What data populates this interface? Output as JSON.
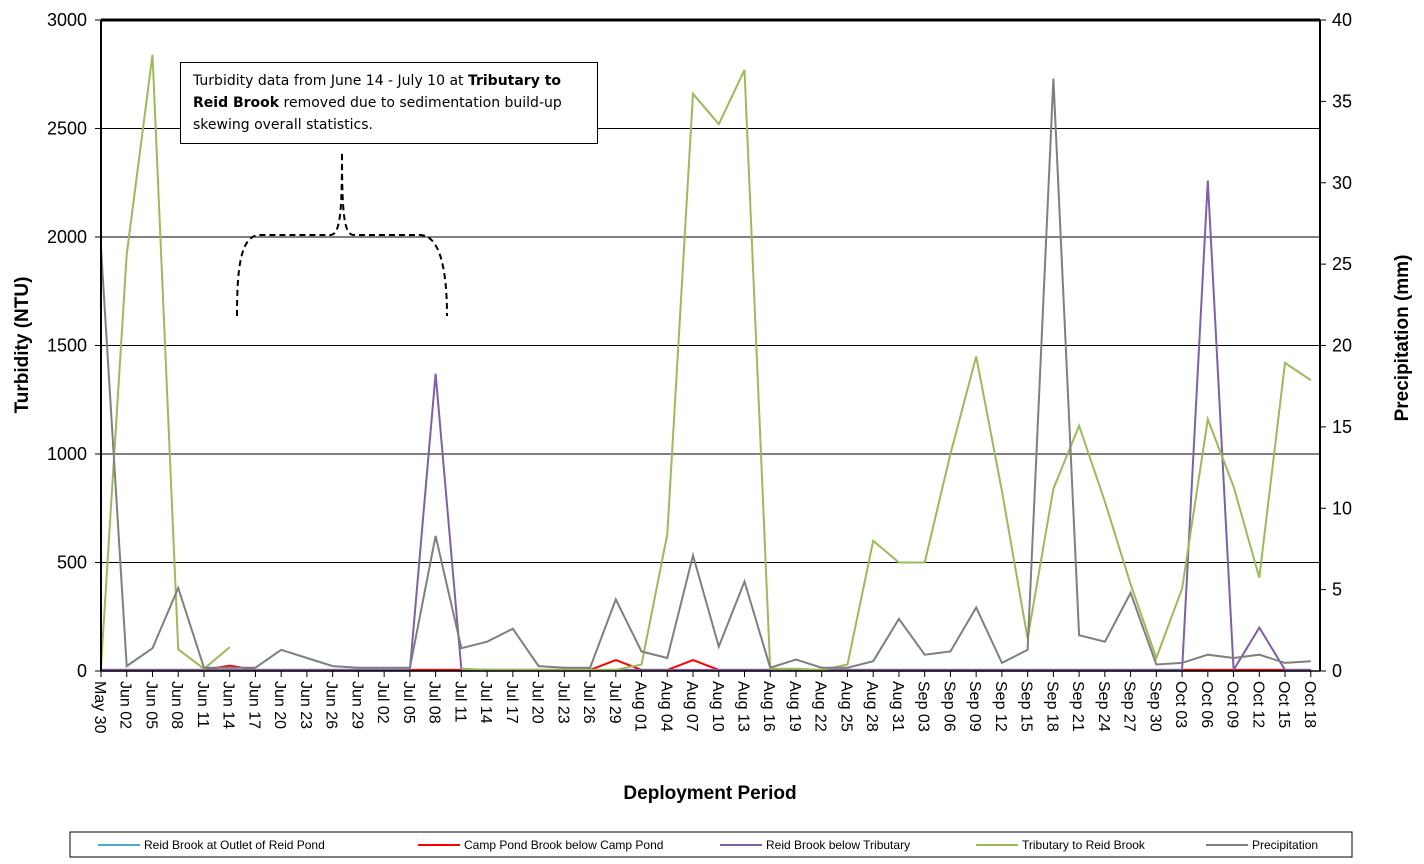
{
  "chart_data": {
    "type": "line",
    "x_label": "Deployment Period",
    "y_label": "Turbidity (NTU)",
    "y2_label": "Precipitation (mm)",
    "annotation": [
      "Turbidity data from June 14 - July 10 at ",
      "Tributary to Reid Brook",
      " removed due to sedimentation build-up skewing overall statistics."
    ],
    "categories": [
      "May 30",
      "Jun 02",
      "Jun 05",
      "Jun 08",
      "Jun 11",
      "Jun 14",
      "Jun 17",
      "Jun 20",
      "Jun 23",
      "Jun 26",
      "Jun 29",
      "Jul 02",
      "Jul 05",
      "Jul 08",
      "Jul 11",
      "Jul 14",
      "Jul 17",
      "Jul 20",
      "Jul 23",
      "Jul 26",
      "Jul 29",
      "Aug 01",
      "Aug 04",
      "Aug 07",
      "Aug 10",
      "Aug 13",
      "Aug 16",
      "Aug 19",
      "Aug 22",
      "Aug 25",
      "Aug 28",
      "Aug 31",
      "Sep 03",
      "Sep 06",
      "Sep 09",
      "Sep 12",
      "Sep 15",
      "Sep 18",
      "Sep 21",
      "Sep 24",
      "Sep 27",
      "Sep 30",
      "Oct 03",
      "Oct 06",
      "Oct 09",
      "Oct 12",
      "Oct 15",
      "Oct 18"
    ],
    "ylim": [
      0,
      3000
    ],
    "yticks": [
      0,
      500,
      1000,
      1500,
      2000,
      2500,
      3000
    ],
    "y2lim": [
      0,
      40
    ],
    "y2ticks": [
      0,
      5,
      10,
      15,
      20,
      25,
      30,
      35,
      40
    ],
    "grid": true,
    "legend": "bottom",
    "series": [
      {
        "name": "Reid Brook at Outlet of Reid Pond",
        "color": "#4bacc6",
        "values": [
          2,
          2,
          2,
          2,
          2,
          2,
          2,
          2,
          2,
          2,
          2,
          2,
          2,
          2,
          2,
          2,
          2,
          2,
          2,
          2,
          2,
          2,
          2,
          2,
          2,
          2,
          2,
          2,
          2,
          2,
          2,
          2,
          2,
          2,
          2,
          2,
          2,
          2,
          2,
          2,
          2,
          2,
          2,
          2,
          2,
          2,
          2,
          2
        ]
      },
      {
        "name": "Camp Pond Brook below Camp Pond",
        "color": "#ff0000",
        "values": [
          5,
          5,
          5,
          5,
          5,
          25,
          5,
          5,
          5,
          5,
          5,
          5,
          5,
          5,
          5,
          5,
          5,
          5,
          5,
          5,
          50,
          5,
          5,
          50,
          5,
          5,
          5,
          5,
          5,
          5,
          5,
          5,
          5,
          5,
          5,
          5,
          5,
          5,
          5,
          5,
          5,
          5,
          5,
          5,
          5,
          5,
          5,
          5
        ]
      },
      {
        "name": "Reid Brook below Tributary",
        "color": "#7f5fa8",
        "values": [
          5,
          5,
          5,
          5,
          5,
          5,
          5,
          5,
          5,
          5,
          5,
          5,
          5,
          1370,
          5,
          5,
          5,
          5,
          5,
          5,
          5,
          5,
          5,
          5,
          5,
          5,
          5,
          5,
          5,
          5,
          5,
          5,
          5,
          5,
          5,
          5,
          5,
          5,
          5,
          5,
          5,
          5,
          5,
          2260,
          5,
          200,
          5,
          5
        ]
      },
      {
        "name": "Tributary to Reid Brook",
        "color": "#9bbb59",
        "values": [
          20,
          1920,
          2840,
          100,
          10,
          110,
          null,
          null,
          null,
          null,
          null,
          null,
          null,
          null,
          10,
          5,
          5,
          5,
          5,
          5,
          5,
          30,
          630,
          2660,
          2520,
          2770,
          10,
          10,
          5,
          30,
          600,
          500,
          500,
          1000,
          1450,
          830,
          150,
          840,
          1130,
          780,
          400,
          60,
          380,
          1160,
          850,
          430,
          1420,
          1340
        ]
      },
      {
        "name": "Precipitation",
        "color": "#7f7f7f",
        "axis": "y2",
        "values": [
          26,
          0.3,
          1.4,
          5.1,
          0.2,
          0.2,
          0.2,
          1.3,
          0.8,
          0.3,
          0.2,
          0.2,
          0.2,
          8.3,
          1.4,
          1.8,
          2.6,
          0.3,
          0.2,
          0.2,
          4.4,
          1.2,
          0.8,
          7.1,
          1.5,
          5.5,
          0.2,
          0.7,
          0.2,
          0.2,
          0.6,
          3.2,
          1.0,
          1.2,
          3.9,
          0.5,
          1.3,
          36.4,
          2.2,
          1.8,
          4.8,
          0.4,
          0.5,
          1.0,
          0.8,
          1.0,
          0.5,
          0.6
        ]
      }
    ]
  }
}
